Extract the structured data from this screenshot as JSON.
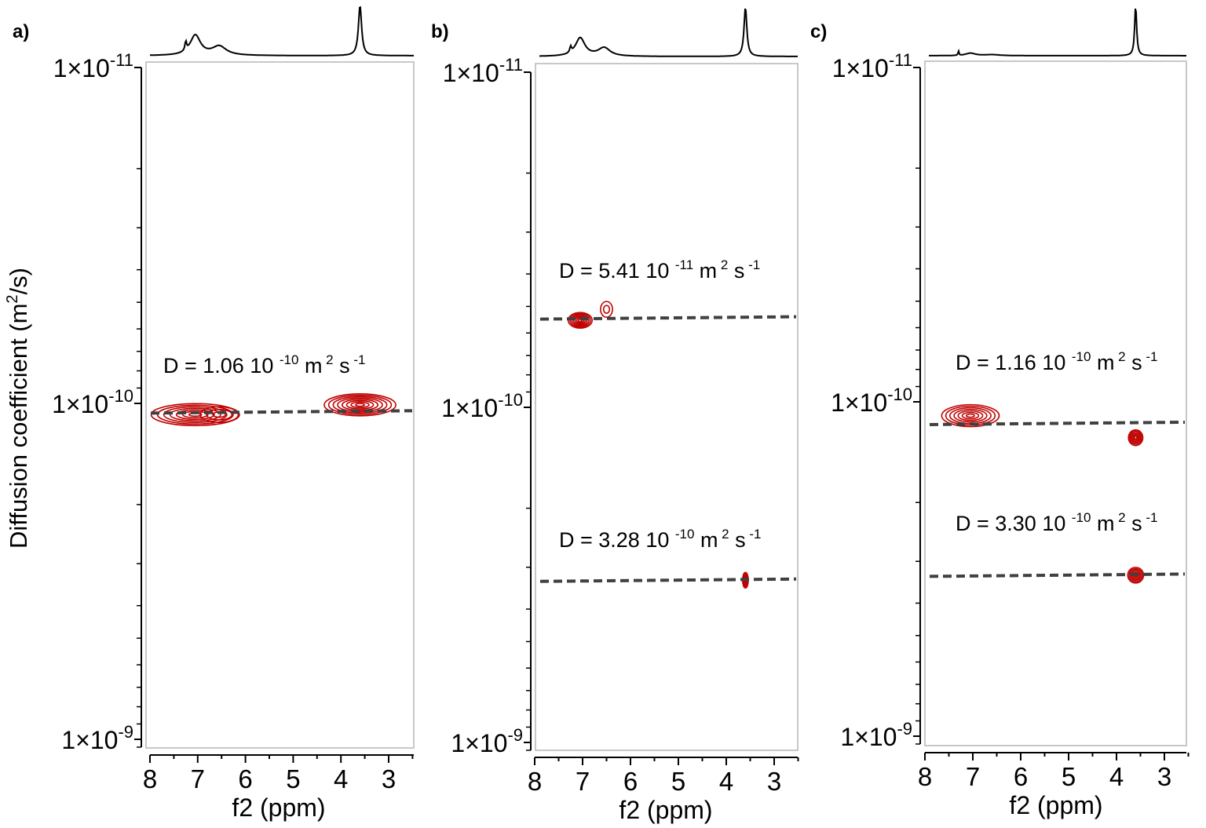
{
  "chart_data": {
    "type": "contour",
    "ylabel": "Diffusion coefficient (m²/s)",
    "ylabel_parts": {
      "pre": "Diffusion coefficient (m",
      "sup": "2",
      "post": "/s)"
    },
    "y_scale": "log",
    "y_reversed": true,
    "grid": false,
    "colors": {
      "contour": "#c00000",
      "fit_line": "#404040",
      "spectrum": "#000000",
      "frame": "#c8c8c8"
    },
    "panels": [
      {
        "label": "a)",
        "xlabel": "f2 (ppm)",
        "xlim": [
          8,
          2.5
        ],
        "x_ticks": [
          "8",
          "7",
          "6",
          "5",
          "4",
          "3"
        ],
        "ylim": [
          1e-11,
          1e-09
        ],
        "y_ticks": [
          {
            "base": "1×10",
            "exp": "-11"
          },
          {
            "base": "1×10",
            "exp": "-10"
          },
          {
            "base": "1×10",
            "exp": "-9"
          }
        ],
        "spectrum_peaks": [
          {
            "ppm": 7.25,
            "height": 0.18,
            "width": 0.02
          },
          {
            "ppm": 7.05,
            "height": 0.4,
            "width": 0.13
          },
          {
            "ppm": 6.55,
            "height": 0.18,
            "width": 0.18
          },
          {
            "ppm": 3.6,
            "height": 1.0,
            "width": 0.04
          }
        ],
        "contours": [
          {
            "ppm": 7.05,
            "D": 1.08e-10,
            "width_ppm": 1.85,
            "levels": 7
          },
          {
            "ppm": 6.55,
            "D": 1.08e-10,
            "width_ppm": 0.8,
            "levels": 3
          },
          {
            "ppm": 3.6,
            "D": 1.01e-10,
            "width_ppm": 1.5,
            "levels": 8
          }
        ],
        "fits": [
          {
            "D": 1.06e-10,
            "mantissa": "1.06",
            "prefix": "D = ",
            "ten": "10",
            "exp": "-10",
            "unit": "m",
            "unit_exp": "2",
            "unit2": "s",
            "unit2_exp": "-1"
          }
        ]
      },
      {
        "label": "b)",
        "xlabel": "f2 (ppm)",
        "xlim": [
          8,
          2.5
        ],
        "x_ticks": [
          "8",
          "7",
          "6",
          "5",
          "4",
          "3"
        ],
        "ylim": [
          1e-11,
          1e-09
        ],
        "y_ticks": [
          {
            "base": "1×10",
            "exp": "-11"
          },
          {
            "base": "1×10",
            "exp": "-10"
          },
          {
            "base": "1×10",
            "exp": "-9"
          }
        ],
        "spectrum_peaks": [
          {
            "ppm": 7.25,
            "height": 0.12,
            "width": 0.02
          },
          {
            "ppm": 7.05,
            "height": 0.37,
            "width": 0.12
          },
          {
            "ppm": 6.55,
            "height": 0.17,
            "width": 0.15
          },
          {
            "ppm": 3.6,
            "height": 1.0,
            "width": 0.035
          }
        ],
        "contours": [
          {
            "ppm": 7.05,
            "D": 5.5e-11,
            "width_ppm": 0.5,
            "levels": 7
          },
          {
            "ppm": 6.5,
            "D": 5.1e-11,
            "width_ppm": 0.25,
            "levels": 2
          },
          {
            "ppm": 3.6,
            "D": 3.28e-10,
            "width_ppm": 0.12,
            "levels": 6
          }
        ],
        "fits": [
          {
            "D": 5.41e-11,
            "mantissa": "5.41",
            "prefix": "D = ",
            "ten": "10",
            "exp": "-11",
            "unit": "m",
            "unit_exp": "2",
            "unit2": "s",
            "unit2_exp": "-1"
          },
          {
            "D": 3.28e-10,
            "mantissa": "3.28",
            "prefix": "D = ",
            "ten": "10",
            "exp": "-10",
            "unit": "m",
            "unit_exp": "2",
            "unit2": "s",
            "unit2_exp": "-1"
          }
        ]
      },
      {
        "label": "c)",
        "xlabel": "f2 (ppm)",
        "xlim": [
          8,
          2.5
        ],
        "x_ticks": [
          "8",
          "7",
          "6",
          "5",
          "4",
          "3"
        ],
        "ylim": [
          1e-11,
          1e-09
        ],
        "y_ticks": [
          {
            "base": "1×10",
            "exp": "-11"
          },
          {
            "base": "1×10",
            "exp": "-10"
          },
          {
            "base": "1×10",
            "exp": "-9"
          }
        ],
        "spectrum_peaks": [
          {
            "ppm": 7.3,
            "height": 0.1,
            "width": 0.01
          },
          {
            "ppm": 7.05,
            "height": 0.05,
            "width": 0.12
          },
          {
            "ppm": 6.6,
            "height": 0.02,
            "width": 0.2
          },
          {
            "ppm": 3.6,
            "height": 1.0,
            "width": 0.025
          }
        ],
        "contours": [
          {
            "ppm": 7.05,
            "D": 1.1e-10,
            "width_ppm": 1.2,
            "levels": 7
          },
          {
            "ppm": 3.6,
            "D": 1.28e-10,
            "width_ppm": 0.3,
            "levels": 6
          },
          {
            "ppm": 3.6,
            "D": 3.3e-10,
            "width_ppm": 0.33,
            "levels": 6
          }
        ],
        "fits": [
          {
            "D": 1.16e-10,
            "mantissa": "1.16",
            "prefix": "D = ",
            "ten": "10",
            "exp": "-10",
            "unit": "m",
            "unit_exp": "2",
            "unit2": "s",
            "unit2_exp": "-1"
          },
          {
            "D": 3.3e-10,
            "mantissa": "3.30",
            "prefix": "D = ",
            "ten": "10",
            "exp": "-10",
            "unit": "m",
            "unit_exp": "2",
            "unit2": "s",
            "unit2_exp": "-1"
          }
        ]
      }
    ]
  }
}
